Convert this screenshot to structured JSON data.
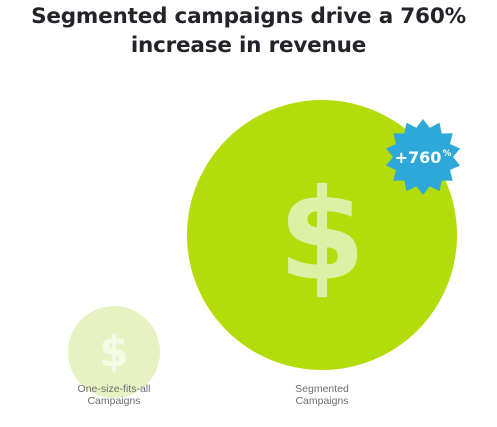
{
  "title": "Segmented campaigns drive a 760% increase in revenue",
  "icons": {
    "bubble_glyph": "$",
    "badge_icon": "starburst-badge-icon",
    "bubble_icon": "dollar-icon"
  },
  "colors": {
    "segmented_bubble": "#b4dc0a",
    "one_size_bubble": "#e6f2c2",
    "dollar_on_segmented": "#dcf0a6",
    "dollar_on_one_size": "#f5fae6",
    "badge": "#2ea8d8",
    "badge_text": "#ffffff",
    "title": "#23232a",
    "label": "#6e6e74"
  },
  "chart_data": {
    "type": "bubble",
    "title": "Segmented campaigns drive a 760% increase in revenue",
    "categories": [
      "One-size-fits-all Campaigns",
      "Segmented Campaigns"
    ],
    "category_labels": [
      [
        "One-size-fits-all",
        "Campaigns"
      ],
      [
        "Segmented",
        "Campaigns"
      ]
    ],
    "relative_values": [
      1,
      8.6
    ],
    "increase_percent": 760,
    "annotation": {
      "value": "+760",
      "suffix": "%",
      "attached_to": "Segmented Campaigns",
      "placement": "top-right"
    },
    "axes": "none",
    "grid": false,
    "legend": "none"
  }
}
